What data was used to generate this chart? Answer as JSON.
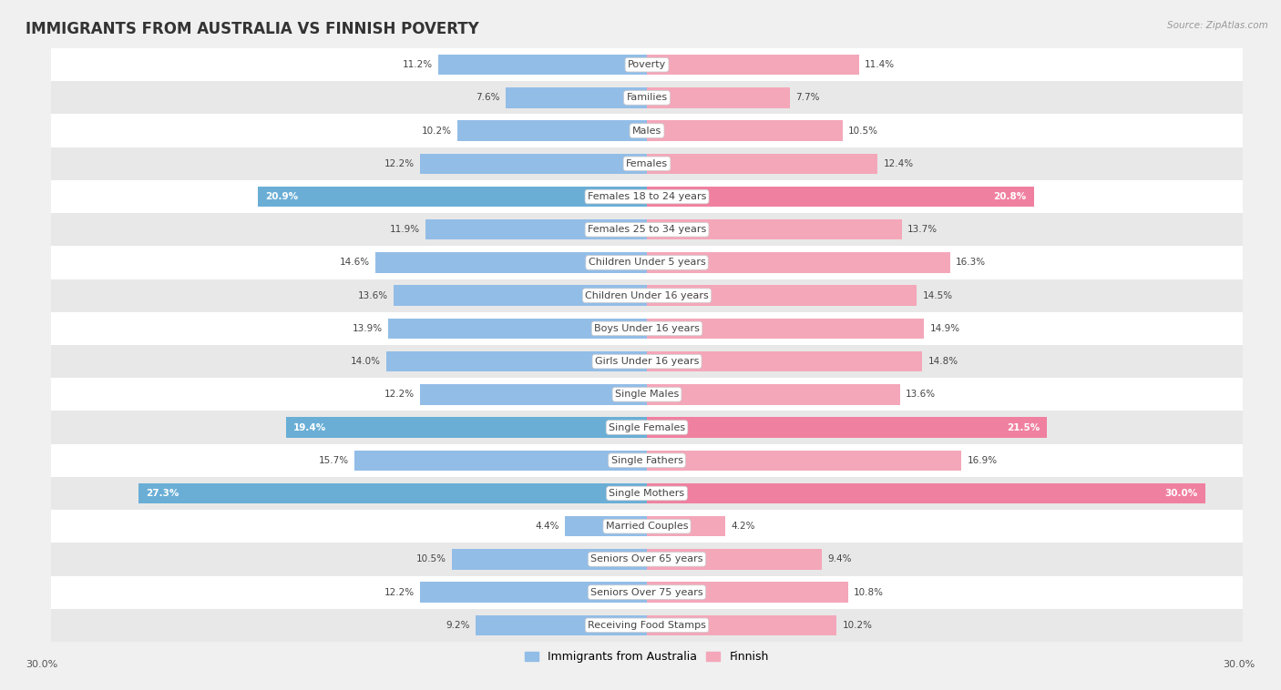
{
  "title": "IMMIGRANTS FROM AUSTRALIA VS FINNISH POVERTY",
  "source": "Source: ZipAtlas.com",
  "categories": [
    "Poverty",
    "Families",
    "Males",
    "Females",
    "Females 18 to 24 years",
    "Females 25 to 34 years",
    "Children Under 5 years",
    "Children Under 16 years",
    "Boys Under 16 years",
    "Girls Under 16 years",
    "Single Males",
    "Single Females",
    "Single Fathers",
    "Single Mothers",
    "Married Couples",
    "Seniors Over 65 years",
    "Seniors Over 75 years",
    "Receiving Food Stamps"
  ],
  "left_values": [
    11.2,
    7.6,
    10.2,
    12.2,
    20.9,
    11.9,
    14.6,
    13.6,
    13.9,
    14.0,
    12.2,
    19.4,
    15.7,
    27.3,
    4.4,
    10.5,
    12.2,
    9.2
  ],
  "right_values": [
    11.4,
    7.7,
    10.5,
    12.4,
    20.8,
    13.7,
    16.3,
    14.5,
    14.9,
    14.8,
    13.6,
    21.5,
    16.9,
    30.0,
    4.2,
    9.4,
    10.8,
    10.2
  ],
  "left_color": "#92bde7",
  "right_color": "#f4a7b9",
  "highlight_left_color": "#6aaed6",
  "highlight_right_color": "#f080a0",
  "highlight_rows": [
    4,
    11,
    13
  ],
  "background_color": "#f0f0f0",
  "row_bg_light": "#ffffff",
  "row_bg_dark": "#e8e8e8",
  "max_val": 31,
  "legend_left": "Immigrants from Australia",
  "legend_right": "Finnish",
  "title_fontsize": 12,
  "label_fontsize": 8,
  "value_fontsize": 7.5
}
